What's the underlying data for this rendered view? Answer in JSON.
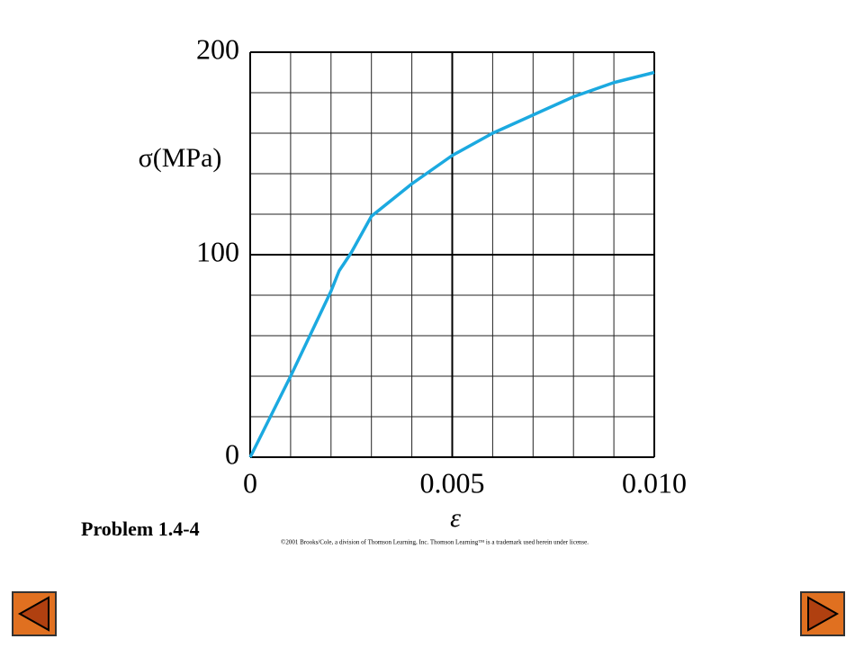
{
  "chart_data": {
    "type": "line",
    "y_label": "σ(MPa)",
    "x_label": "ε",
    "x": [
      0,
      0.001,
      0.002,
      0.0022,
      0.0025,
      0.003,
      0.004,
      0.005,
      0.006,
      0.007,
      0.008,
      0.009,
      0.01
    ],
    "series": [
      {
        "color": "#1ba9e0",
        "values": [
          0,
          40,
          82,
          92,
          101,
          119,
          135,
          149,
          160,
          169,
          178,
          185,
          190
        ]
      }
    ],
    "xlim": [
      0,
      0.01
    ],
    "ylim": [
      0,
      200
    ],
    "xticks": [
      0,
      0.005,
      {
        "value": 0.01,
        "label": "0.010"
      }
    ],
    "yticks": [
      0,
      100,
      200
    ],
    "x_grid": [
      0.001,
      0.002,
      0.003,
      0.004,
      0.006,
      0.007,
      0.008,
      0.009
    ],
    "y_grid": [
      20,
      40,
      60,
      80,
      120,
      140,
      160,
      180
    ],
    "grid": true
  },
  "caption": "Problem 1.4-4",
  "copyright": "©2001 Brooks/Cole, a division of Thomson Learning, Inc.  Thomson Learning™ is a trademark used herein under license."
}
